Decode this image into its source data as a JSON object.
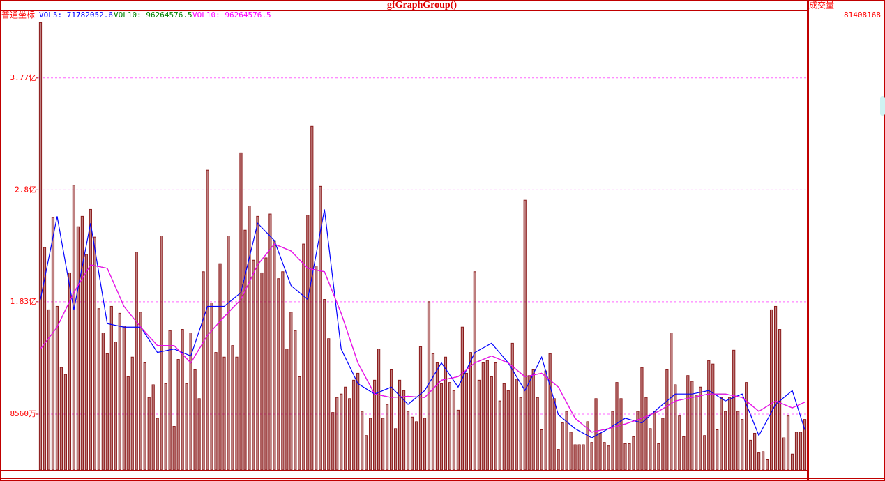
{
  "chart_data": {
    "type": "bar",
    "title": "gfGraphGroup()",
    "axis_mode": "普通坐标",
    "panel_label": "成交量",
    "panel_value": "81408168",
    "color": "#8b1a1a",
    "grid": true,
    "ylim": [
      37250000,
      434900000
    ],
    "yticks": [
      {
        "value": 85600000,
        "label": "8560万"
      },
      {
        "value": 183000000,
        "label": "1.83亿"
      },
      {
        "value": 280000000,
        "label": "2.8亿"
      },
      {
        "value": 377000000,
        "label": "3.77亿"
      }
    ],
    "values": [
      425000000,
      230000000,
      176000000,
      256000000,
      179000000,
      126000000,
      120000000,
      208000000,
      284000000,
      248000000,
      257000000,
      224000000,
      263000000,
      239000000,
      177000000,
      156000000,
      138000000,
      179000000,
      148000000,
      173000000,
      162000000,
      118000000,
      135000000,
      226000000,
      174000000,
      130000000,
      100000000,
      111000000,
      82000000,
      240000000,
      112000000,
      158000000,
      75000000,
      133000000,
      159000000,
      112000000,
      156000000,
      124000000,
      99000000,
      209000000,
      297000000,
      182000000,
      139000000,
      216000000,
      135000000,
      240000000,
      145000000,
      135000000,
      312000000,
      245000000,
      266000000,
      219000000,
      257000000,
      208000000,
      221000000,
      259000000,
      236000000,
      203000000,
      209000000,
      142000000,
      174000000,
      158000000,
      118000000,
      233000000,
      258000000,
      335000000,
      214000000,
      283000000,
      185000000,
      151000000,
      87000000,
      100000000,
      103000000,
      109000000,
      99000000,
      115000000,
      121000000,
      88000000,
      67000000,
      82000000,
      115000000,
      142000000,
      82000000,
      94000000,
      124000000,
      73000000,
      115000000,
      106000000,
      88000000,
      83000000,
      79000000,
      144000000,
      82000000,
      183000000,
      138000000,
      130000000,
      112000000,
      135000000,
      113000000,
      106000000,
      89000000,
      161000000,
      121000000,
      139000000,
      209000000,
      115000000,
      130000000,
      132000000,
      118000000,
      130000000,
      97000000,
      112000000,
      106000000,
      147000000,
      116000000,
      100000000,
      271000000,
      119000000,
      124000000,
      100000000,
      72000000,
      123000000,
      138000000,
      99000000,
      55000000,
      78000000,
      88000000,
      70000000,
      59000000,
      59000000,
      59000000,
      79000000,
      61000000,
      99000000,
      69000000,
      61000000,
      58000000,
      88000000,
      113000000,
      99000000,
      60000000,
      60000000,
      66000000,
      88000000,
      126000000,
      100000000,
      73000000,
      88000000,
      60000000,
      82000000,
      124000000,
      156000000,
      111000000,
      84000000,
      66000000,
      119000000,
      114000000,
      102000000,
      109000000,
      67000000,
      132000000,
      129000000,
      72000000,
      100000000,
      88000000,
      100000000,
      141000000,
      88000000,
      81000000,
      113000000,
      63000000,
      69000000,
      52000000,
      53000000,
      46000000,
      176000000,
      179000000,
      159000000,
      65000000,
      84000000,
      51000000,
      70000000,
      70000000,
      81000000
    ],
    "series": [
      {
        "name": "VOL5: 71782052.6",
        "color": "#0000ff",
        "x": [
          0,
          4,
          8,
          12,
          16,
          20,
          24,
          28,
          32,
          36,
          40,
          44,
          48,
          52,
          56,
          60,
          64,
          68,
          72,
          76,
          80,
          84,
          88,
          92,
          96,
          100,
          104,
          108,
          112,
          116,
          120,
          124,
          128,
          132,
          136,
          140,
          144,
          148,
          152,
          156,
          160,
          164,
          168,
          172,
          176,
          180,
          183
        ],
        "values": [
          185000000,
          257000000,
          176000000,
          251000000,
          164000000,
          161000000,
          161000000,
          139000000,
          142000000,
          136000000,
          179000000,
          179000000,
          191000000,
          251000000,
          236000000,
          197000000,
          185000000,
          263000000,
          142000000,
          112000000,
          103000000,
          109000000,
          94000000,
          106000000,
          130000000,
          109000000,
          139000000,
          147000000,
          130000000,
          106000000,
          135000000,
          85000000,
          73000000,
          65000000,
          73000000,
          82000000,
          78000000,
          91000000,
          103000000,
          103000000,
          106000000,
          97000000,
          103000000,
          67000000,
          94000000,
          106000000,
          72000000
        ]
      },
      {
        "name": "VOL10: 96264576.5",
        "color": "#008000",
        "x": [
          0,
          4,
          8,
          12,
          16,
          20,
          24,
          28,
          32,
          36,
          40,
          44,
          48,
          52,
          56,
          60,
          64,
          68,
          72,
          76,
          80,
          84,
          88,
          92,
          96,
          100,
          104,
          108,
          112,
          116,
          120,
          124,
          128,
          132,
          136,
          140,
          144,
          148,
          152,
          156,
          160,
          164,
          168,
          172,
          176,
          180,
          183
        ],
        "values": [
          142000000,
          161000000,
          191000000,
          215000000,
          212000000,
          179000000,
          161000000,
          145000000,
          145000000,
          130000000,
          154000000,
          170000000,
          185000000,
          215000000,
          233000000,
          227000000,
          212000000,
          209000000,
          173000000,
          130000000,
          103000000,
          100000000,
          101000000,
          100000000,
          115000000,
          118000000,
          130000000,
          136000000,
          130000000,
          118000000,
          121000000,
          109000000,
          82000000,
          70000000,
          73000000,
          77000000,
          82000000,
          88000000,
          97000000,
          100000000,
          103000000,
          103000000,
          100000000,
          88000000,
          97000000,
          91000000,
          96000000
        ]
      },
      {
        "name": "VOL10: 96264576.5",
        "color": "#ff00ff",
        "x": [
          0,
          4,
          8,
          12,
          16,
          20,
          24,
          28,
          32,
          36,
          40,
          44,
          48,
          52,
          56,
          60,
          64,
          68,
          72,
          76,
          80,
          84,
          88,
          92,
          96,
          100,
          104,
          108,
          112,
          116,
          120,
          124,
          128,
          132,
          136,
          140,
          144,
          148,
          152,
          156,
          160,
          164,
          168,
          172,
          176,
          180,
          183
        ],
        "values": [
          142000000,
          161000000,
          191000000,
          215000000,
          212000000,
          179000000,
          161000000,
          145000000,
          145000000,
          130000000,
          154000000,
          170000000,
          185000000,
          215000000,
          233000000,
          227000000,
          212000000,
          209000000,
          173000000,
          130000000,
          103000000,
          100000000,
          101000000,
          100000000,
          115000000,
          118000000,
          130000000,
          136000000,
          130000000,
          118000000,
          121000000,
          109000000,
          82000000,
          70000000,
          73000000,
          77000000,
          82000000,
          88000000,
          97000000,
          100000000,
          103000000,
          103000000,
          100000000,
          88000000,
          97000000,
          91000000,
          96000000
        ]
      }
    ]
  }
}
